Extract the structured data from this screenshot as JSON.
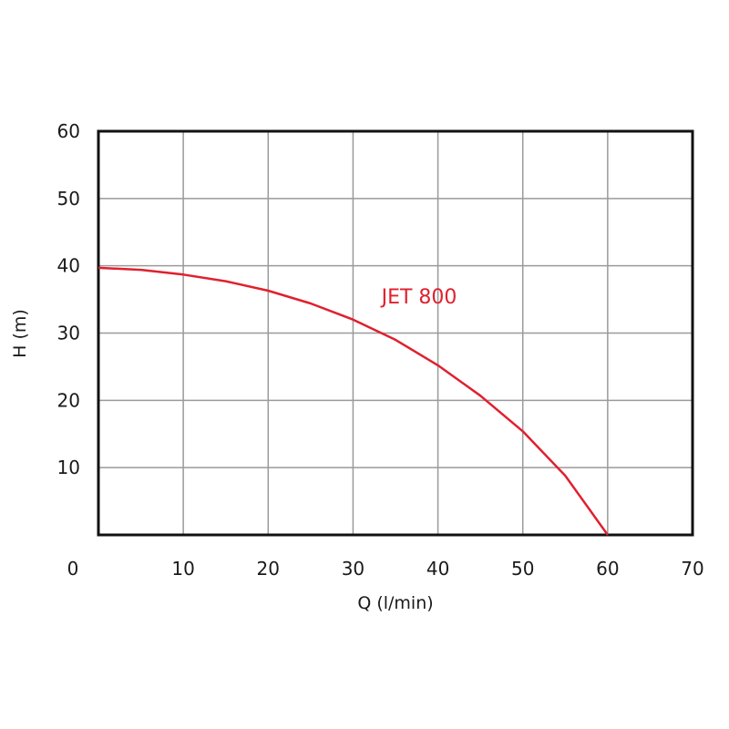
{
  "chart_data": {
    "type": "line",
    "xlabel": "Q (l/min)",
    "ylabel": "H (m)",
    "xlim": [
      0,
      70
    ],
    "ylim": [
      0,
      60
    ],
    "x_ticks": [
      "0",
      "10",
      "20",
      "30",
      "40",
      "50",
      "60",
      "70"
    ],
    "y_ticks": [
      "10",
      "20",
      "30",
      "40",
      "50",
      "60"
    ],
    "grid": true,
    "series": [
      {
        "name": "JET 800",
        "color": "#e0202e",
        "x": [
          0,
          5,
          10,
          15,
          20,
          25,
          30,
          35,
          40,
          45,
          50,
          55,
          60
        ],
        "y": [
          39.7,
          39.4,
          38.7,
          37.7,
          36.3,
          34.4,
          32.0,
          29.0,
          25.2,
          20.7,
          15.4,
          8.8,
          0
        ]
      }
    ]
  }
}
